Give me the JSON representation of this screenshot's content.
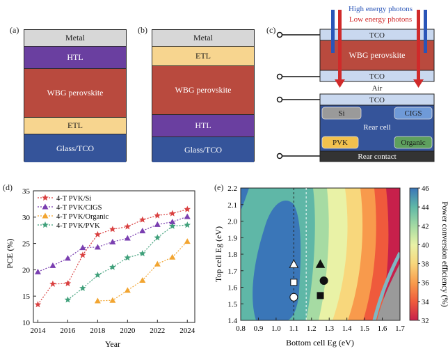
{
  "panel_a": {
    "label": "(a)",
    "layers": [
      {
        "name": "Metal",
        "color": "#d7d7d7",
        "text_color": "#1a1a1a"
      },
      {
        "name": "HTL",
        "color": "#6a3fa0",
        "text_color": "#ffffff"
      },
      {
        "name": "WBG perovskite",
        "color": "#b94a3e",
        "text_color": "#ffffff"
      },
      {
        "name": "ETL",
        "color": "#f7d58f",
        "text_color": "#1a1a1a"
      },
      {
        "name": "Glass/TCO",
        "color": "#35549a",
        "text_color": "#ffffff"
      }
    ]
  },
  "panel_b": {
    "label": "(b)",
    "layers": [
      {
        "name": "Metal",
        "color": "#d7d7d7",
        "text_color": "#1a1a1a"
      },
      {
        "name": "ETL",
        "color": "#f7d58f",
        "text_color": "#1a1a1a"
      },
      {
        "name": "WBG perovskite",
        "color": "#b94a3e",
        "text_color": "#ffffff"
      },
      {
        "name": "HTL",
        "color": "#6a3fa0",
        "text_color": "#ffffff"
      },
      {
        "name": "Glass/TCO",
        "color": "#35549a",
        "text_color": "#ffffff"
      }
    ]
  },
  "panel_c": {
    "label": "(c)",
    "high_energy": "High energy photons",
    "low_energy": "Low energy photons",
    "tco_top": "TCO",
    "wbg": "WBG perovskite",
    "tco_mid": "TCO",
    "air": "Air",
    "tco_rear": "TCO",
    "rear_cell": "Rear cell",
    "rear_contact": "Rear contact",
    "options": [
      {
        "name": "Si",
        "color": "#9a9a9a"
      },
      {
        "name": "CIGS",
        "color": "#6f9ad8"
      },
      {
        "name": "PVK",
        "color": "#f2c14e"
      },
      {
        "name": "Organic",
        "color": "#5ea05e"
      }
    ],
    "colors": {
      "high": "#2a55b8",
      "low": "#d02a2a",
      "cell": "#35549a",
      "tco": "#c9d8ef",
      "wbg": "#b94a3e",
      "contact": "#333333"
    }
  },
  "panel_d": {
    "label": "(d)"
  },
  "panel_e": {
    "label": "(e)"
  },
  "chart_data": [
    {
      "type": "line",
      "panel": "(d)",
      "title": "",
      "xlabel": "Year",
      "ylabel": "PCE (%)",
      "xlim": [
        2013.7,
        2024.5
      ],
      "ylim": [
        10,
        35
      ],
      "xticks": [
        "2014",
        "2016",
        "2018",
        "2020",
        "2022",
        "2024"
      ],
      "yticks": [
        "10",
        "15",
        "20",
        "25",
        "30",
        "35"
      ],
      "series": [
        {
          "name": "4-T PVK/Si",
          "color": "#d94040",
          "marker": "star",
          "x": [
            2014,
            2015,
            2016,
            2017,
            2018,
            2019,
            2020,
            2021,
            2022,
            2023,
            2024
          ],
          "y": [
            13.4,
            17.3,
            17.4,
            22.8,
            26.7,
            27.7,
            28.2,
            29.5,
            30.3,
            30.7,
            31.5
          ]
        },
        {
          "name": "4-T PVK/CIGS",
          "color": "#7a3fb0",
          "marker": "triangle",
          "x": [
            2014,
            2015,
            2016,
            2017,
            2018,
            2019,
            2020,
            2021,
            2022,
            2023,
            2024
          ],
          "y": [
            19.6,
            20.8,
            22.2,
            24.2,
            24.3,
            25.3,
            26.0,
            27.4,
            28.6,
            29.1,
            30.1
          ]
        },
        {
          "name": "4-T PVK/Organic",
          "color": "#f2a531",
          "marker": "triangle",
          "x": [
            2018,
            2019,
            2020,
            2021,
            2022,
            2023,
            2024
          ],
          "y": [
            14.1,
            14.2,
            16.1,
            18.0,
            21.1,
            22.4,
            25.4
          ]
        },
        {
          "name": "4-T PVK/PVK",
          "color": "#3fa07a",
          "marker": "star",
          "x": [
            2016,
            2017,
            2018,
            2019,
            2020,
            2021,
            2022,
            2023,
            2024
          ],
          "y": [
            14.3,
            16.5,
            19.0,
            20.5,
            22.3,
            23.1,
            26.1,
            28.3,
            28.5
          ]
        }
      ]
    },
    {
      "type": "heatmap",
      "panel": "(e)",
      "title": "",
      "xlabel": "Bottom cell Eg (eV)",
      "ylabel": "Top cell Eg (eV)",
      "colorbar_label": "Power conversion efficiency (%)",
      "xlim": [
        0.8,
        1.7
      ],
      "ylim": [
        1.4,
        2.2
      ],
      "xticks": [
        "0.8",
        "0.9",
        "1.0",
        "1.1",
        "1.2",
        "1.3",
        "1.4",
        "1.5",
        "1.6",
        "1.7"
      ],
      "yticks": [
        "1.4",
        "1.5",
        "1.6",
        "1.7",
        "1.8",
        "1.9",
        "2.0",
        "2.1",
        "2.2"
      ],
      "colorbar_ticks": [
        "32",
        "34",
        "36",
        "38",
        "40",
        "42",
        "44",
        "46"
      ],
      "colorbar_range": [
        32,
        46
      ],
      "reference_lines_x": [
        1.1,
        1.17
      ],
      "markers": [
        {
          "shape": "triangle",
          "fill": "white",
          "x": 1.1,
          "y": 1.74
        },
        {
          "shape": "square",
          "fill": "white",
          "x": 1.1,
          "y": 1.63
        },
        {
          "shape": "circle",
          "fill": "white",
          "x": 1.1,
          "y": 1.54
        },
        {
          "shape": "triangle",
          "fill": "black",
          "x": 1.25,
          "y": 1.74
        },
        {
          "shape": "circle",
          "fill": "black",
          "x": 1.27,
          "y": 1.64
        },
        {
          "shape": "square",
          "fill": "black",
          "x": 1.25,
          "y": 1.55
        }
      ],
      "optimum": {
        "x": 1.0,
        "y": 1.78
      }
    }
  ]
}
